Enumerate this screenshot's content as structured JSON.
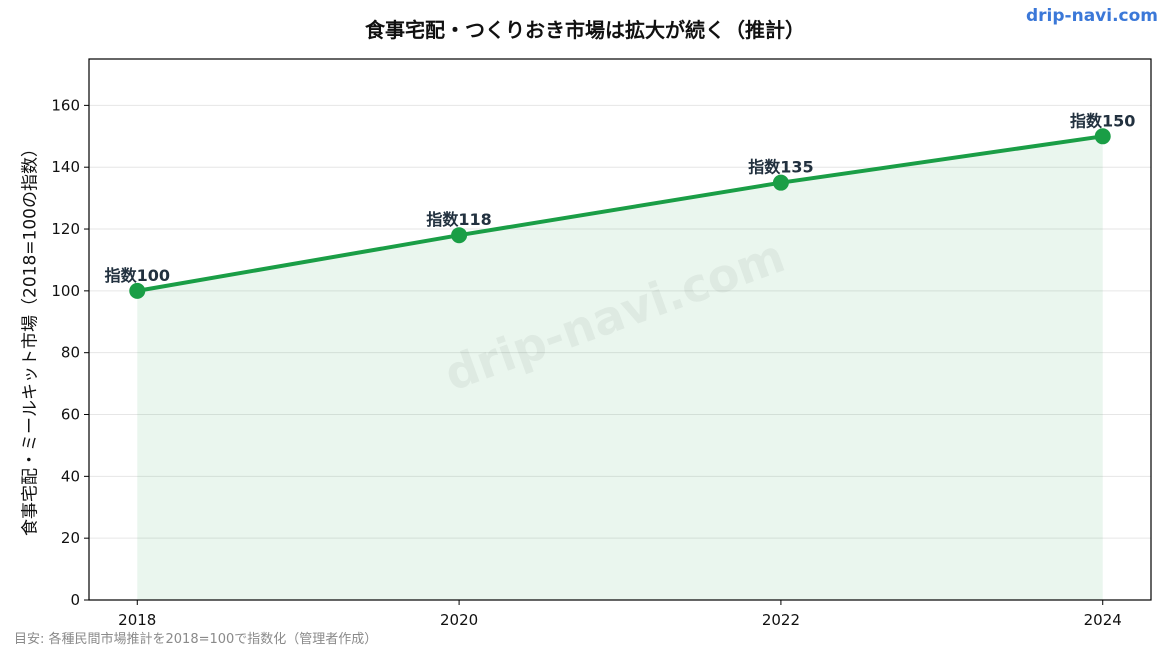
{
  "site": {
    "brand": "drip-navi.com",
    "watermark": "drip-navi.com"
  },
  "source_note": "目安: 各種民間市場推計を2018=100で指数化（管理者作成）",
  "chart_data": {
    "type": "line",
    "title": "食事宅配・つくりおき市場は拡大が続く（推計）",
    "xlabel": "",
    "ylabel": "食事宅配・ミールキット市場（2018=100の指数）",
    "x": [
      2018,
      2020,
      2022,
      2024
    ],
    "x_ticks": [
      "2018",
      "2020",
      "2022",
      "2024"
    ],
    "xlim": [
      2017.7,
      2024.3
    ],
    "ylim": [
      0,
      175
    ],
    "y_ticks": [
      0,
      20,
      40,
      60,
      80,
      100,
      120,
      140,
      160
    ],
    "series": [
      {
        "values": [
          100,
          118,
          135,
          150
        ],
        "color": "#1a9e46",
        "fill": "area"
      }
    ],
    "data_labels": [
      "指数100",
      "指数118",
      "指数135",
      "指数150"
    ],
    "grid": true,
    "legend": "none"
  }
}
